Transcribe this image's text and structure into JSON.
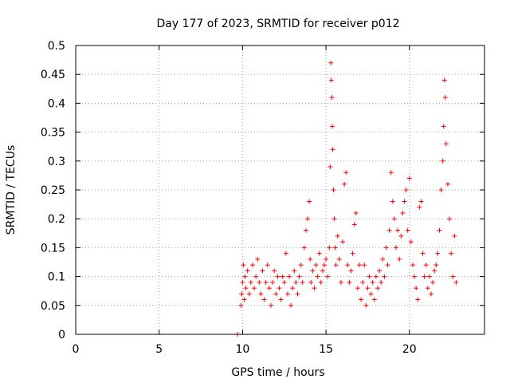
{
  "chart_data": {
    "type": "scatter",
    "title": "Day 177 of 2023, SRMTID for receiver p012",
    "xlabel": "GPS time / hours",
    "ylabel": "SRMTID / TECUs",
    "xlim": [
      0,
      24.5
    ],
    "ylim": [
      0,
      0.5
    ],
    "xticks": [
      0,
      5,
      10,
      15,
      20
    ],
    "xtick_labels": [
      "0",
      "5",
      "10",
      "15",
      "20"
    ],
    "yticks": [
      0,
      0.05,
      0.1,
      0.15,
      0.2,
      0.25,
      0.3,
      0.35,
      0.4,
      0.45,
      0.5
    ],
    "ytick_labels": [
      "0",
      "0.05",
      "0.1",
      "0.15",
      "0.2",
      "0.25",
      "0.3",
      "0.35",
      "0.4",
      "0.45",
      "0.5"
    ],
    "grid": true,
    "marker": "+",
    "colors": {
      "series": "#ff0000",
      "grid": "#a0a0a0",
      "axes": "#000000"
    },
    "series": [
      {
        "name": "SRMTID",
        "points": [
          [
            9.7,
            0.0
          ],
          [
            9.9,
            0.05
          ],
          [
            9.95,
            0.07
          ],
          [
            10.0,
            0.09
          ],
          [
            10.05,
            0.12
          ],
          [
            10.1,
            0.06
          ],
          [
            10.15,
            0.1
          ],
          [
            10.2,
            0.08
          ],
          [
            10.3,
            0.11
          ],
          [
            10.4,
            0.07
          ],
          [
            10.5,
            0.09
          ],
          [
            10.6,
            0.12
          ],
          [
            10.7,
            0.08
          ],
          [
            10.8,
            0.1
          ],
          [
            10.9,
            0.13
          ],
          [
            11.0,
            0.09
          ],
          [
            11.1,
            0.07
          ],
          [
            11.2,
            0.11
          ],
          [
            11.3,
            0.06
          ],
          [
            11.4,
            0.09
          ],
          [
            11.5,
            0.12
          ],
          [
            11.6,
            0.08
          ],
          [
            11.7,
            0.05
          ],
          [
            11.8,
            0.09
          ],
          [
            11.9,
            0.11
          ],
          [
            12.0,
            0.07
          ],
          [
            12.1,
            0.1
          ],
          [
            12.2,
            0.08
          ],
          [
            12.3,
            0.06
          ],
          [
            12.4,
            0.1
          ],
          [
            12.5,
            0.09
          ],
          [
            12.6,
            0.14
          ],
          [
            12.7,
            0.07
          ],
          [
            12.8,
            0.1
          ],
          [
            12.9,
            0.05
          ],
          [
            13.0,
            0.08
          ],
          [
            13.1,
            0.11
          ],
          [
            13.2,
            0.09
          ],
          [
            13.3,
            0.07
          ],
          [
            13.4,
            0.1
          ],
          [
            13.5,
            0.12
          ],
          [
            13.6,
            0.09
          ],
          [
            13.7,
            0.15
          ],
          [
            13.8,
            0.18
          ],
          [
            13.9,
            0.2
          ],
          [
            14.0,
            0.23
          ],
          [
            14.05,
            0.13
          ],
          [
            14.1,
            0.09
          ],
          [
            14.2,
            0.11
          ],
          [
            14.3,
            0.08
          ],
          [
            14.4,
            0.12
          ],
          [
            14.5,
            0.1
          ],
          [
            14.6,
            0.14
          ],
          [
            14.7,
            0.09
          ],
          [
            14.8,
            0.11
          ],
          [
            14.9,
            0.12
          ],
          [
            15.0,
            0.13
          ],
          [
            15.1,
            0.1
          ],
          [
            15.2,
            0.15
          ],
          [
            15.25,
            0.29
          ],
          [
            15.3,
            0.47
          ],
          [
            15.32,
            0.44
          ],
          [
            15.35,
            0.41
          ],
          [
            15.38,
            0.36
          ],
          [
            15.4,
            0.32
          ],
          [
            15.45,
            0.25
          ],
          [
            15.5,
            0.2
          ],
          [
            15.55,
            0.15
          ],
          [
            15.6,
            0.12
          ],
          [
            15.7,
            0.17
          ],
          [
            15.8,
            0.13
          ],
          [
            15.9,
            0.09
          ],
          [
            16.0,
            0.16
          ],
          [
            16.1,
            0.26
          ],
          [
            16.2,
            0.28
          ],
          [
            16.3,
            0.12
          ],
          [
            16.4,
            0.09
          ],
          [
            16.5,
            0.11
          ],
          [
            16.6,
            0.14
          ],
          [
            16.7,
            0.19
          ],
          [
            16.8,
            0.21
          ],
          [
            16.9,
            0.08
          ],
          [
            17.0,
            0.12
          ],
          [
            17.1,
            0.06
          ],
          [
            17.2,
            0.09
          ],
          [
            17.3,
            0.12
          ],
          [
            17.4,
            0.05
          ],
          [
            17.5,
            0.08
          ],
          [
            17.6,
            0.1
          ],
          [
            17.7,
            0.07
          ],
          [
            17.8,
            0.09
          ],
          [
            17.9,
            0.06
          ],
          [
            18.0,
            0.1
          ],
          [
            18.1,
            0.08
          ],
          [
            18.2,
            0.11
          ],
          [
            18.3,
            0.09
          ],
          [
            18.4,
            0.13
          ],
          [
            18.5,
            0.1
          ],
          [
            18.6,
            0.15
          ],
          [
            18.7,
            0.12
          ],
          [
            18.8,
            0.18
          ],
          [
            18.9,
            0.28
          ],
          [
            19.0,
            0.23
          ],
          [
            19.1,
            0.2
          ],
          [
            19.2,
            0.15
          ],
          [
            19.3,
            0.18
          ],
          [
            19.4,
            0.13
          ],
          [
            19.5,
            0.17
          ],
          [
            19.6,
            0.21
          ],
          [
            19.7,
            0.23
          ],
          [
            19.8,
            0.25
          ],
          [
            19.9,
            0.18
          ],
          [
            20.0,
            0.27
          ],
          [
            20.1,
            0.16
          ],
          [
            20.2,
            0.12
          ],
          [
            20.3,
            0.1
          ],
          [
            20.4,
            0.08
          ],
          [
            20.5,
            0.06
          ],
          [
            20.6,
            0.22
          ],
          [
            20.7,
            0.23
          ],
          [
            20.8,
            0.14
          ],
          [
            20.9,
            0.1
          ],
          [
            21.0,
            0.12
          ],
          [
            21.1,
            0.08
          ],
          [
            21.2,
            0.1
          ],
          [
            21.3,
            0.07
          ],
          [
            21.4,
            0.09
          ],
          [
            21.5,
            0.11
          ],
          [
            21.6,
            0.12
          ],
          [
            21.7,
            0.14
          ],
          [
            21.8,
            0.18
          ],
          [
            21.9,
            0.25
          ],
          [
            22.0,
            0.3
          ],
          [
            22.05,
            0.36
          ],
          [
            22.1,
            0.44
          ],
          [
            22.15,
            0.41
          ],
          [
            22.2,
            0.33
          ],
          [
            22.3,
            0.26
          ],
          [
            22.4,
            0.2
          ],
          [
            22.5,
            0.14
          ],
          [
            22.6,
            0.1
          ],
          [
            22.7,
            0.17
          ],
          [
            22.8,
            0.09
          ]
        ]
      }
    ]
  }
}
